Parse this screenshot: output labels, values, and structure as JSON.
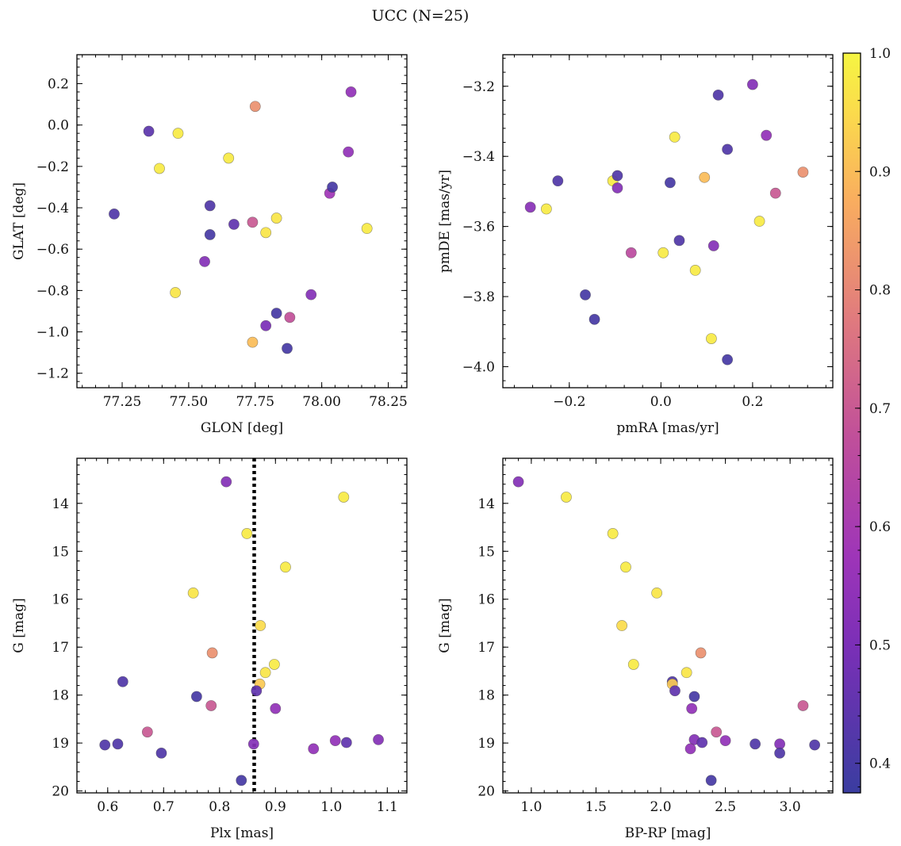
{
  "figure": {
    "title": "UCC (N=25)"
  },
  "colorbar": {
    "range": [
      0.375,
      1.0
    ],
    "ticks": [
      0.4,
      0.5,
      0.6,
      0.7,
      0.8,
      0.9,
      1.0
    ],
    "tick_labels": [
      "0.4",
      "0.5",
      "0.6",
      "0.7",
      "0.8",
      "0.9",
      "1.0"
    ],
    "colormap": "plasma"
  },
  "chart_data": [
    {
      "type": "scatter",
      "panel": "top-left",
      "xlabel": "GLON [deg]",
      "ylabel": "GLAT [deg]",
      "xlim": [
        77.08,
        78.32
      ],
      "ylim": [
        -1.27,
        0.34
      ],
      "y_inverted": false,
      "x_ticks": [
        77.25,
        77.5,
        77.75,
        78.0,
        78.25
      ],
      "x_tick_labels": [
        "77.25",
        "77.50",
        "77.75",
        "78.00",
        "78.25"
      ],
      "y_ticks": [
        -1.2,
        -1.0,
        -0.8,
        -0.6,
        -0.4,
        -0.2,
        0.0,
        0.2
      ],
      "y_tick_labels": [
        "−1.2",
        "−1.0",
        "−0.8",
        "−0.6",
        "−0.4",
        "−0.2",
        "0.0",
        "0.2"
      ],
      "color_by": "membership probability",
      "points": [
        {
          "x": 77.22,
          "y": -0.43,
          "c": 0.42
        },
        {
          "x": 77.35,
          "y": -0.03,
          "c": 0.44
        },
        {
          "x": 77.39,
          "y": -0.21,
          "c": 0.98
        },
        {
          "x": 77.46,
          "y": -0.04,
          "c": 0.98
        },
        {
          "x": 77.45,
          "y": -0.81,
          "c": 0.97
        },
        {
          "x": 77.56,
          "y": -0.66,
          "c": 0.52
        },
        {
          "x": 77.58,
          "y": -0.39,
          "c": 0.42
        },
        {
          "x": 77.58,
          "y": -0.53,
          "c": 0.4
        },
        {
          "x": 77.65,
          "y": -0.16,
          "c": 0.98
        },
        {
          "x": 77.67,
          "y": -0.48,
          "c": 0.45
        },
        {
          "x": 77.74,
          "y": -0.47,
          "c": 0.7
        },
        {
          "x": 77.75,
          "y": 0.09,
          "c": 0.82
        },
        {
          "x": 77.74,
          "y": -1.05,
          "c": 0.9
        },
        {
          "x": 77.79,
          "y": -0.52,
          "c": 0.97
        },
        {
          "x": 77.79,
          "y": -0.97,
          "c": 0.5
        },
        {
          "x": 77.83,
          "y": -0.45,
          "c": 0.97
        },
        {
          "x": 77.83,
          "y": -0.91,
          "c": 0.4
        },
        {
          "x": 77.87,
          "y": -1.08,
          "c": 0.4
        },
        {
          "x": 77.88,
          "y": -0.93,
          "c": 0.68
        },
        {
          "x": 77.96,
          "y": -0.82,
          "c": 0.52
        },
        {
          "x": 78.03,
          "y": -0.33,
          "c": 0.58
        },
        {
          "x": 78.04,
          "y": -0.3,
          "c": 0.4
        },
        {
          "x": 78.1,
          "y": -0.13,
          "c": 0.55
        },
        {
          "x": 78.11,
          "y": 0.16,
          "c": 0.55
        },
        {
          "x": 78.17,
          "y": -0.5,
          "c": 0.98
        }
      ]
    },
    {
      "type": "scatter",
      "panel": "top-right",
      "xlabel": "pmRA [mas/yr]",
      "ylabel": "pmDE [mas/yr]",
      "xlim": [
        -0.345,
        0.375
      ],
      "ylim": [
        -4.06,
        -3.11
      ],
      "y_inverted": false,
      "x_ticks": [
        -0.2,
        0.0,
        0.2
      ],
      "x_tick_labels": [
        "−0.2",
        "0.0",
        "0.2"
      ],
      "y_ticks": [
        -4.0,
        -3.8,
        -3.6,
        -3.4,
        -3.2
      ],
      "y_tick_labels": [
        "−4.0",
        "−3.8",
        "−3.6",
        "−3.4",
        "−3.2"
      ],
      "color_by": "membership probability",
      "points": [
        {
          "x": -0.285,
          "y": -3.545,
          "c": 0.53
        },
        {
          "x": -0.25,
          "y": -3.55,
          "c": 0.98
        },
        {
          "x": -0.225,
          "y": -3.47,
          "c": 0.42
        },
        {
          "x": -0.165,
          "y": -3.795,
          "c": 0.4
        },
        {
          "x": -0.145,
          "y": -3.865,
          "c": 0.4
        },
        {
          "x": -0.105,
          "y": -3.47,
          "c": 0.98
        },
        {
          "x": -0.095,
          "y": -3.455,
          "c": 0.42
        },
        {
          "x": -0.095,
          "y": -3.49,
          "c": 0.52
        },
        {
          "x": -0.065,
          "y": -3.675,
          "c": 0.66
        },
        {
          "x": 0.005,
          "y": -3.675,
          "c": 0.98
        },
        {
          "x": 0.02,
          "y": -3.475,
          "c": 0.4
        },
        {
          "x": 0.03,
          "y": -3.345,
          "c": 0.98
        },
        {
          "x": 0.04,
          "y": -3.64,
          "c": 0.42
        },
        {
          "x": 0.075,
          "y": -3.725,
          "c": 0.98
        },
        {
          "x": 0.095,
          "y": -3.46,
          "c": 0.9
        },
        {
          "x": 0.11,
          "y": -3.92,
          "c": 0.98
        },
        {
          "x": 0.115,
          "y": -3.655,
          "c": 0.52
        },
        {
          "x": 0.125,
          "y": -3.225,
          "c": 0.42
        },
        {
          "x": 0.145,
          "y": -3.38,
          "c": 0.42
        },
        {
          "x": 0.145,
          "y": -3.98,
          "c": 0.4
        },
        {
          "x": 0.2,
          "y": -3.195,
          "c": 0.52
        },
        {
          "x": 0.215,
          "y": -3.585,
          "c": 0.98
        },
        {
          "x": 0.23,
          "y": -3.34,
          "c": 0.55
        },
        {
          "x": 0.25,
          "y": -3.505,
          "c": 0.7
        },
        {
          "x": 0.31,
          "y": -3.445,
          "c": 0.82
        }
      ]
    },
    {
      "type": "scatter",
      "panel": "bottom-left",
      "xlabel": "Plx [mas]",
      "ylabel": "G [mag]",
      "xlim": [
        0.545,
        1.135
      ],
      "ylim": [
        13.06,
        20.04
      ],
      "y_inverted": true,
      "x_ticks": [
        0.6,
        0.7,
        0.8,
        0.9,
        1.0,
        1.1
      ],
      "x_tick_labels": [
        "0.6",
        "0.7",
        "0.8",
        "0.9",
        "1.0",
        "1.1"
      ],
      "y_ticks": [
        14,
        15,
        16,
        17,
        18,
        19,
        20
      ],
      "y_tick_labels": [
        "14",
        "15",
        "16",
        "17",
        "18",
        "19",
        "20"
      ],
      "vertical_line": {
        "x": 0.862,
        "style": "dotted"
      },
      "color_by": "membership probability",
      "points": [
        {
          "x": 0.812,
          "y": 13.55,
          "c": 0.52
        },
        {
          "x": 1.022,
          "y": 13.87,
          "c": 0.98
        },
        {
          "x": 0.849,
          "y": 14.63,
          "c": 0.98
        },
        {
          "x": 0.918,
          "y": 15.33,
          "c": 0.98
        },
        {
          "x": 0.753,
          "y": 15.87,
          "c": 0.97
        },
        {
          "x": 0.873,
          "y": 16.55,
          "c": 0.95
        },
        {
          "x": 0.787,
          "y": 17.12,
          "c": 0.82
        },
        {
          "x": 0.898,
          "y": 17.36,
          "c": 0.98
        },
        {
          "x": 0.882,
          "y": 17.53,
          "c": 0.97
        },
        {
          "x": 0.627,
          "y": 17.72,
          "c": 0.42
        },
        {
          "x": 0.872,
          "y": 17.77,
          "c": 0.92
        },
        {
          "x": 0.866,
          "y": 17.91,
          "c": 0.45
        },
        {
          "x": 0.759,
          "y": 18.03,
          "c": 0.4
        },
        {
          "x": 0.785,
          "y": 18.22,
          "c": 0.7
        },
        {
          "x": 0.9,
          "y": 18.28,
          "c": 0.55
        },
        {
          "x": 0.671,
          "y": 18.77,
          "c": 0.7
        },
        {
          "x": 1.084,
          "y": 18.93,
          "c": 0.52
        },
        {
          "x": 1.007,
          "y": 18.95,
          "c": 0.55
        },
        {
          "x": 1.027,
          "y": 18.99,
          "c": 0.45
        },
        {
          "x": 0.618,
          "y": 19.02,
          "c": 0.42
        },
        {
          "x": 0.861,
          "y": 19.02,
          "c": 0.52
        },
        {
          "x": 0.595,
          "y": 19.04,
          "c": 0.42
        },
        {
          "x": 0.968,
          "y": 19.12,
          "c": 0.55
        },
        {
          "x": 0.696,
          "y": 19.21,
          "c": 0.42
        },
        {
          "x": 0.839,
          "y": 19.78,
          "c": 0.4
        }
      ]
    },
    {
      "type": "scatter",
      "panel": "bottom-right",
      "xlabel": "BP-RP [mag]",
      "ylabel": "G [mag]",
      "xlim": [
        0.78,
        3.33
      ],
      "ylim": [
        13.06,
        20.04
      ],
      "y_inverted": true,
      "x_ticks": [
        1.0,
        1.5,
        2.0,
        2.5,
        3.0
      ],
      "x_tick_labels": [
        "1.0",
        "1.5",
        "2.0",
        "2.5",
        "3.0"
      ],
      "y_ticks": [
        14,
        15,
        16,
        17,
        18,
        19,
        20
      ],
      "y_tick_labels": [
        "14",
        "15",
        "16",
        "17",
        "18",
        "19",
        "20"
      ],
      "color_by": "membership probability",
      "points": [
        {
          "x": 0.9,
          "y": 13.55,
          "c": 0.52
        },
        {
          "x": 1.27,
          "y": 13.87,
          "c": 0.98
        },
        {
          "x": 1.63,
          "y": 14.63,
          "c": 0.98
        },
        {
          "x": 1.73,
          "y": 15.33,
          "c": 0.98
        },
        {
          "x": 1.97,
          "y": 15.87,
          "c": 0.97
        },
        {
          "x": 1.7,
          "y": 16.55,
          "c": 0.95
        },
        {
          "x": 2.31,
          "y": 17.12,
          "c": 0.82
        },
        {
          "x": 1.79,
          "y": 17.36,
          "c": 0.98
        },
        {
          "x": 2.2,
          "y": 17.53,
          "c": 0.97
        },
        {
          "x": 2.09,
          "y": 17.72,
          "c": 0.42
        },
        {
          "x": 2.09,
          "y": 17.77,
          "c": 0.92
        },
        {
          "x": 2.11,
          "y": 17.91,
          "c": 0.45
        },
        {
          "x": 2.26,
          "y": 18.03,
          "c": 0.4
        },
        {
          "x": 3.1,
          "y": 18.22,
          "c": 0.7
        },
        {
          "x": 2.24,
          "y": 18.28,
          "c": 0.55
        },
        {
          "x": 2.43,
          "y": 18.77,
          "c": 0.7
        },
        {
          "x": 2.26,
          "y": 18.93,
          "c": 0.52
        },
        {
          "x": 2.5,
          "y": 18.95,
          "c": 0.55
        },
        {
          "x": 2.32,
          "y": 18.99,
          "c": 0.45
        },
        {
          "x": 2.73,
          "y": 19.02,
          "c": 0.42
        },
        {
          "x": 2.92,
          "y": 19.02,
          "c": 0.52
        },
        {
          "x": 3.19,
          "y": 19.04,
          "c": 0.42
        },
        {
          "x": 2.23,
          "y": 19.12,
          "c": 0.55
        },
        {
          "x": 2.92,
          "y": 19.21,
          "c": 0.42
        },
        {
          "x": 2.39,
          "y": 19.78,
          "c": 0.4
        }
      ]
    }
  ]
}
